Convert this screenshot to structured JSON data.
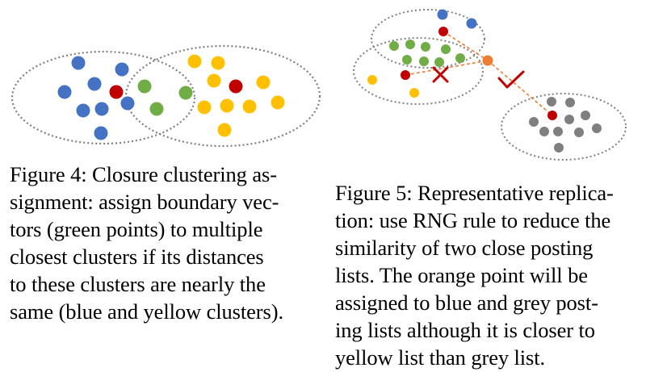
{
  "figure4": {
    "caption_lines": [
      "Figure 4: Closure clustering as-",
      "signment: assign boundary vec-",
      "tors (green points) to multiple",
      "closest clusters if its distances",
      "to these clusters are nearly the",
      "same (blue and yellow clusters)."
    ],
    "colors": {
      "blue": "#4472c4",
      "red": "#c00000",
      "green": "#70ad47",
      "yellow": "#ffc000",
      "outline": "#7f7f7f"
    }
  },
  "figure5": {
    "caption_lines": [
      "Figure 5: Representative replica-",
      "tion: use RNG rule to reduce the",
      "similarity of two close posting",
      "lists.  The orange point will be",
      "assigned to blue and grey post-",
      "ing lists although it is closer to",
      "yellow list than grey list."
    ],
    "colors": {
      "blue": "#4472c4",
      "red": "#c00000",
      "green": "#70ad47",
      "yellow": "#ffc000",
      "grey": "#7f7f7f",
      "orange": "#ed7d31",
      "cross": "#c00000",
      "check": "#c00000"
    },
    "icons": [
      "cross-mark-icon",
      "check-mark-icon"
    ]
  }
}
